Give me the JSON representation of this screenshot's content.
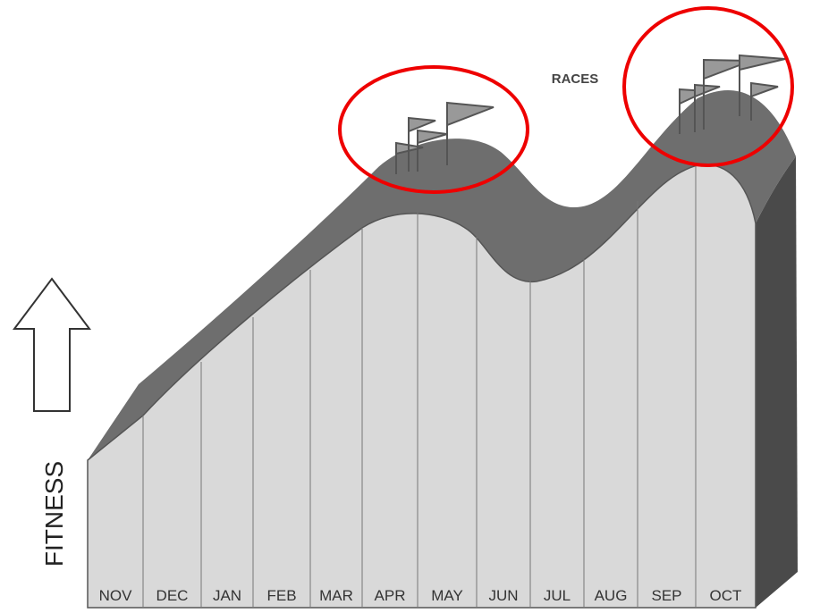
{
  "annotation": "RACES",
  "ylabel": "FITNESS",
  "months": [
    "NOV",
    "DEC",
    "JAN",
    "FEB",
    "MAR",
    "APR",
    "MAY",
    "JUN",
    "JUL",
    "AUG",
    "SEP",
    "OCT"
  ]
}
